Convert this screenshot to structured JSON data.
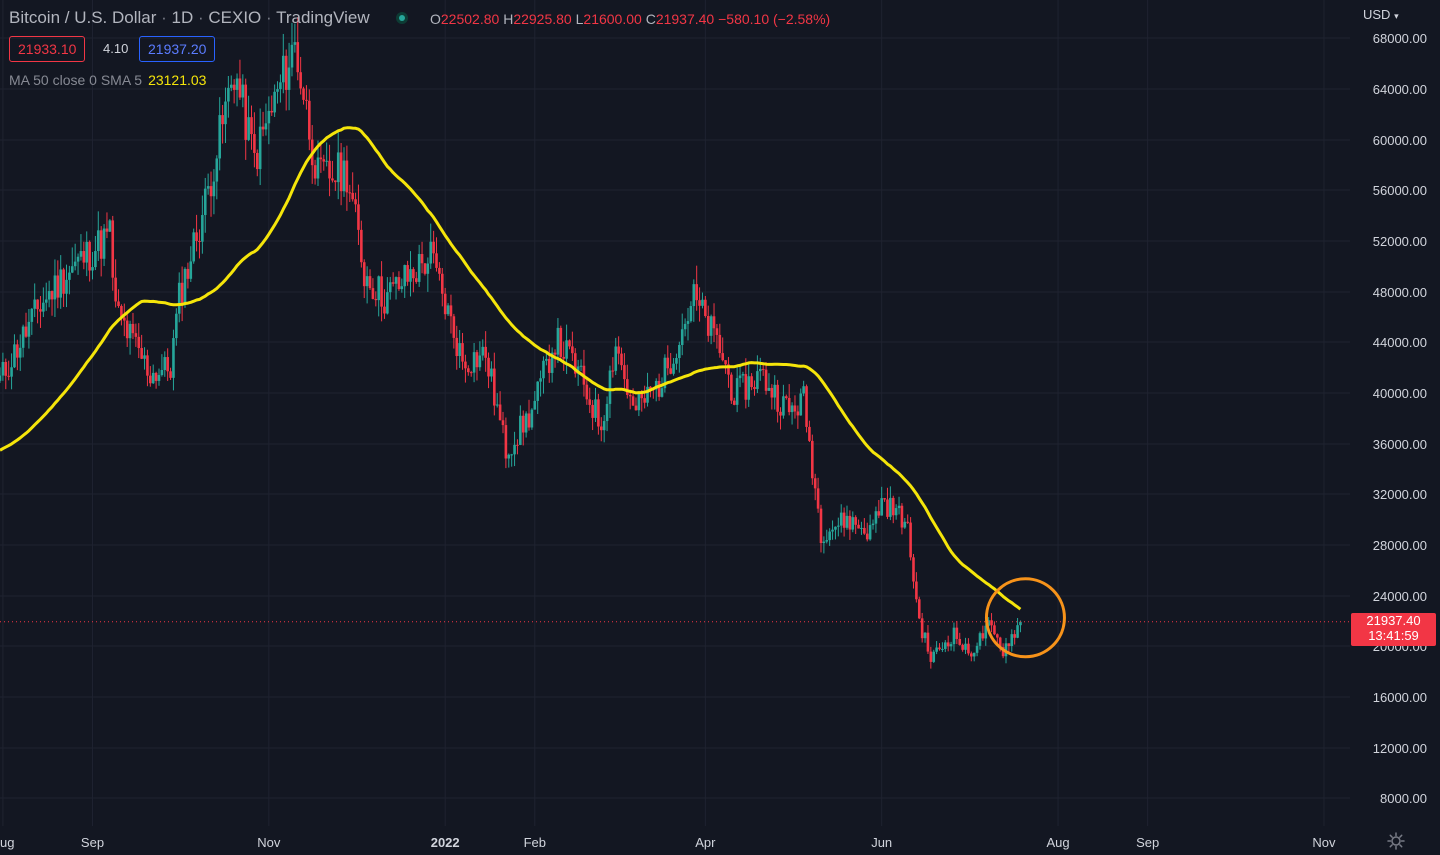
{
  "header": {
    "symbol": "Bitcoin / U.S. Dollar",
    "interval": "1D",
    "exchange": "CEXIO",
    "source": "TradingView",
    "ohlc": {
      "o_label": "O",
      "o": "22502.80",
      "h_label": "H",
      "h": "22925.80",
      "l_label": "L",
      "l": "21600.00",
      "c_label": "C",
      "c": "21937.40",
      "change": "−580.10 (−2.58%)"
    },
    "bid": "21933.10",
    "spread": "4.10",
    "ask": "21937.20",
    "ma_legend": "MA 50 close 0 SMA 5",
    "ma_value": "23121.03",
    "currency": "USD"
  },
  "last_price": {
    "price": "21937.40",
    "countdown": "13:41:59"
  },
  "colors": {
    "up": "#26a69a",
    "down": "#f23645",
    "ma": "#f5e50a",
    "highlight_circle": "#f7931a",
    "background": "#131722",
    "grid": "#1f2330"
  },
  "chart_data": {
    "type": "candlestick",
    "title": "Bitcoin / U.S. Dollar",
    "x_tick_labels": [
      "Aug",
      "Sep",
      "Nov",
      "2022",
      "Feb",
      "Apr",
      "Jun",
      "Aug",
      "Sep",
      "Nov"
    ],
    "y_tick_labels": [
      "68000.00",
      "64000.00",
      "60000.00",
      "56000.00",
      "52000.00",
      "48000.00",
      "44000.00",
      "40000.00",
      "36000.00",
      "32000.00",
      "28000.00",
      "24000.00",
      "20000.00",
      "16000.00",
      "12000.00",
      "8000.00"
    ],
    "y_range": [
      6000,
      70000
    ],
    "x_range": [
      "2021-07-31",
      "2022-11-10"
    ],
    "price_scale": "custom nonlinear (as labeled)",
    "price_keypoints": [
      [
        "2021-07-31",
        41000
      ],
      [
        "2021-08-14",
        47000
      ],
      [
        "2021-08-23",
        49500
      ],
      [
        "2021-09-07",
        52500
      ],
      [
        "2021-09-09",
        46500
      ],
      [
        "2021-09-21",
        41500
      ],
      [
        "2021-09-28",
        42000
      ],
      [
        "2021-10-01",
        47500
      ],
      [
        "2021-10-10",
        55000
      ],
      [
        "2021-10-20",
        65500
      ],
      [
        "2021-10-27",
        58500
      ],
      [
        "2021-11-10",
        67500
      ],
      [
        "2021-11-18",
        57000
      ],
      [
        "2021-11-28",
        57500
      ],
      [
        "2021-12-04",
        49500
      ],
      [
        "2021-12-11",
        47500
      ],
      [
        "2021-12-27",
        50800
      ],
      [
        "2022-01-07",
        42500
      ],
      [
        "2022-01-15",
        43000
      ],
      [
        "2022-01-22",
        35500
      ],
      [
        "2022-01-31",
        38500
      ],
      [
        "2022-02-08",
        44200
      ],
      [
        "2022-02-14",
        42500
      ],
      [
        "2022-02-24",
        37500
      ],
      [
        "2022-03-01",
        44000
      ],
      [
        "2022-03-07",
        38500
      ],
      [
        "2022-03-17",
        41000
      ],
      [
        "2022-03-28",
        47500
      ],
      [
        "2022-04-06",
        43500
      ],
      [
        "2022-04-11",
        39800
      ],
      [
        "2022-04-20",
        41500
      ],
      [
        "2022-04-30",
        38500
      ],
      [
        "2022-05-05",
        39500
      ],
      [
        "2022-05-11",
        29000
      ],
      [
        "2022-05-20",
        30000
      ],
      [
        "2022-05-28",
        29000
      ],
      [
        "2022-06-01",
        31500
      ],
      [
        "2022-06-08",
        30200
      ],
      [
        "2022-06-10",
        29000
      ],
      [
        "2022-06-14",
        22000
      ],
      [
        "2022-06-18",
        19000
      ],
      [
        "2022-06-26",
        21000
      ],
      [
        "2022-07-01",
        19300
      ],
      [
        "2022-07-08",
        21500
      ],
      [
        "2022-07-13",
        19700
      ],
      [
        "2022-07-19",
        21937
      ]
    ],
    "series": [
      {
        "name": "MA 50 close 0 SMA 5",
        "last_value": 23121.03
      }
    ],
    "last_close": 21937.4,
    "annotations": [
      "orange circle highlighting the latest candles near the 50-day MA"
    ],
    "grid": true
  }
}
